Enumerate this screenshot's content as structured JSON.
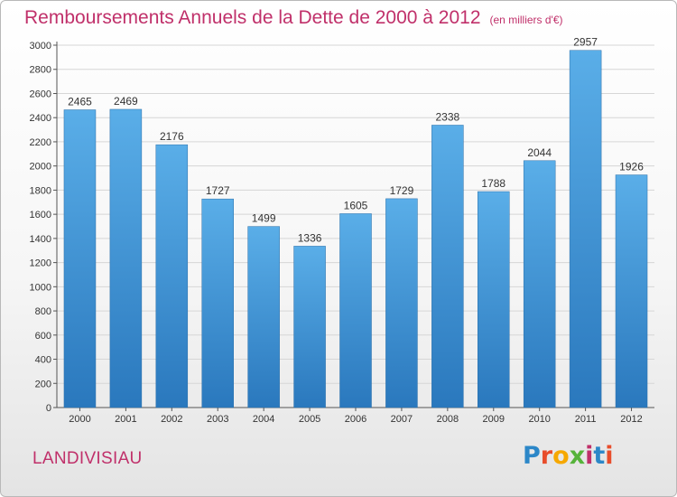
{
  "header": {
    "title": "Remboursements Annuels de la Dette de 2000 à 2012",
    "unit": "(en milliers d'€)"
  },
  "footer": {
    "city": "LANDIVISIAU",
    "logo": "Proxiti",
    "logo_colors": [
      "#2c87c8",
      "#e84d2b",
      "#f6a800",
      "#56b33a",
      "#c0306a",
      "#2c87c8",
      "#e84d2b"
    ]
  },
  "chart_data": {
    "type": "bar",
    "title": "Remboursements Annuels de la Dette de 2000 à 2012",
    "subtitle": "(en milliers d'€)",
    "xlabel": "",
    "ylabel": "",
    "categories": [
      "2000",
      "2001",
      "2002",
      "2003",
      "2004",
      "2005",
      "2006",
      "2007",
      "2008",
      "2009",
      "2010",
      "2011",
      "2012"
    ],
    "values": [
      2465,
      2469,
      2176,
      1727,
      1499,
      1336,
      1605,
      1729,
      2338,
      1788,
      2044,
      2957,
      1926
    ],
    "ylim": [
      0,
      3000
    ],
    "yticks": [
      0,
      200,
      400,
      600,
      800,
      1000,
      1200,
      1400,
      1600,
      1800,
      2000,
      2200,
      2400,
      2600,
      2800,
      3000
    ],
    "grid": true,
    "bar_color_top": "#5aaee8",
    "bar_color_bottom": "#2a78bd"
  }
}
